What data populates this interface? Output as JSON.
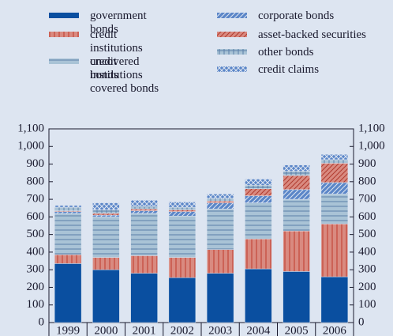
{
  "chart_data": {
    "type": "bar",
    "stacked": true,
    "categories": [
      "1999",
      "2000",
      "2001",
      "2002",
      "2003",
      "2004",
      "2005",
      "2006"
    ],
    "series": [
      {
        "name": "government bonds",
        "color": "#0a4fa0",
        "values": [
          335,
          300,
          280,
          255,
          280,
          305,
          290,
          260
        ]
      },
      {
        "name": "credit institutions uncovered bonds",
        "color": "#d98a80",
        "values": [
          50,
          70,
          100,
          115,
          135,
          170,
          230,
          300
        ]
      },
      {
        "name": "credit institutions covered bonds",
        "color": "#a9c3d6",
        "values": [
          235,
          230,
          240,
          235,
          230,
          205,
          180,
          170
        ]
      },
      {
        "name": "corporate bonds",
        "color": "#5b86c8",
        "values": [
          10,
          10,
          15,
          25,
          35,
          40,
          55,
          65
        ]
      },
      {
        "name": "asset-backed securities",
        "color": "#d98a80",
        "values": [
          5,
          10,
          10,
          10,
          10,
          40,
          80,
          110
        ]
      },
      {
        "name": "other bonds",
        "color": "#a9c3d6",
        "values": [
          20,
          20,
          15,
          15,
          15,
          20,
          25,
          20
        ]
      },
      {
        "name": "credit claims",
        "color": "#5b86c8",
        "values": [
          10,
          40,
          35,
          30,
          25,
          35,
          35,
          30
        ]
      }
    ],
    "ylim": [
      0,
      1100
    ],
    "yticks": [
      0,
      100,
      200,
      300,
      400,
      500,
      600,
      700,
      800,
      900,
      {
        "value": 1000,
        "label": "1,000"
      },
      {
        "value": 1100,
        "label": "1,100"
      }
    ],
    "y2lim": [
      0,
      1100
    ],
    "y2ticks": [
      0,
      100,
      200,
      300,
      400,
      500,
      600,
      700,
      800,
      900,
      {
        "value": 1000,
        "label": "1,000"
      },
      {
        "value": 1100,
        "label": "1,100"
      }
    ]
  }
}
